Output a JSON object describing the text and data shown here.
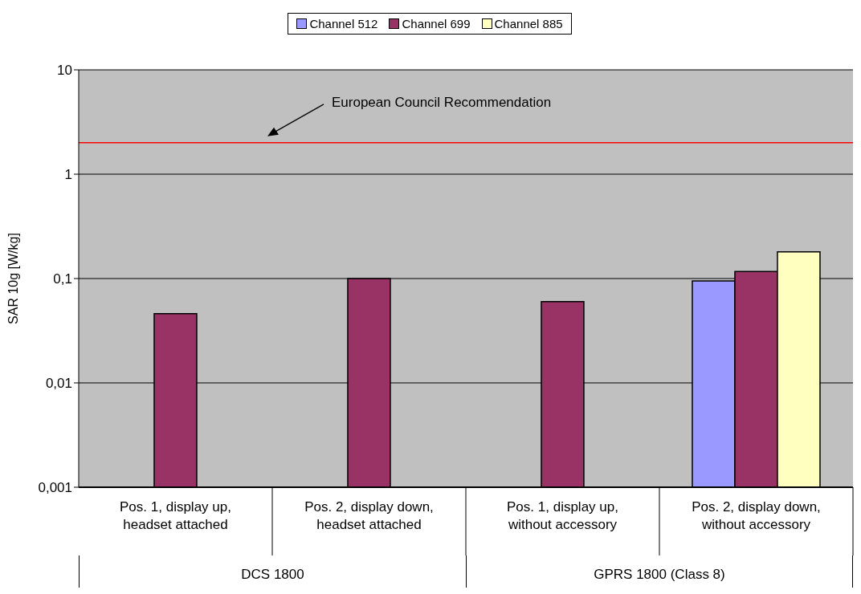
{
  "chart_data": {
    "type": "bar",
    "ylabel": "SAR 10g [W/kg]",
    "categories": [
      "Pos. 1, display up, headset attached",
      "Pos. 2, display down, headset attached",
      "Pos. 1, display up, without accessory",
      "Pos. 2, display down, without accessory"
    ],
    "series": [
      {
        "name": "Channel 512",
        "color": "#9999ff",
        "values": [
          null,
          null,
          null,
          0.095
        ]
      },
      {
        "name": "Channel 699",
        "color": "#993366",
        "values": [
          0.046,
          0.1,
          0.06,
          0.117
        ]
      },
      {
        "name": "Channel 885",
        "color": "#ffffc0",
        "values": [
          null,
          null,
          null,
          0.18
        ]
      }
    ],
    "log": true,
    "ylim": [
      0.001,
      10
    ],
    "yticks": [
      {
        "value": 0.001,
        "label": "0,001"
      },
      {
        "value": 0.01,
        "label": "0,01"
      },
      {
        "value": 0.1,
        "label": "0,1"
      },
      1,
      10
    ],
    "grid": "y",
    "legend": "top",
    "ref_lines": [
      {
        "axis": "y",
        "value": 2,
        "label": "European Council Recommendation",
        "color": "#ff0000"
      }
    ],
    "annotations": [
      "DCS 1800",
      "GPRS 1800 (Class 8)"
    ]
  }
}
